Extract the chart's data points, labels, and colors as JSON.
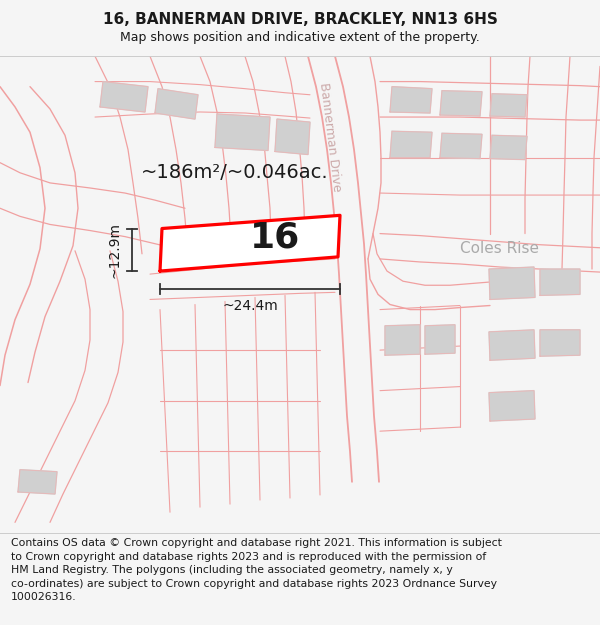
{
  "title": "16, BANNERMAN DRIVE, BRACKLEY, NN13 6HS",
  "subtitle": "Map shows position and indicative extent of the property.",
  "footer": "Contains OS data © Crown copyright and database right 2021. This information is subject\nto Crown copyright and database rights 2023 and is reproduced with the permission of\nHM Land Registry. The polygons (including the associated geometry, namely x, y\nco-ordinates) are subject to Crown copyright and database rights 2023 Ordnance Survey\n100026316.",
  "area_text": "~186m²/~0.046ac.",
  "plot_number": "16",
  "width_label": "~24.4m",
  "height_label": "~12.9m",
  "road_label": "Bannerman Drive",
  "coles_rise_label": "Coles Rise",
  "bg_color": "#f5f5f5",
  "map_bg": "#ffffff",
  "plot_color": "#ff0000",
  "road_color": "#f0a0a0",
  "road_fill": "#f8f0f0",
  "building_color": "#d0d0d0",
  "building_outline": "#e8b8b8",
  "text_color": "#1a1a1a",
  "measure_color": "#333333",
  "road_label_color": "#ccaaaa",
  "coles_rise_color": "#aaaaaa",
  "footer_fontsize": 7.8,
  "title_fontsize": 11,
  "subtitle_fontsize": 9,
  "area_fontsize": 14,
  "plot_num_fontsize": 26,
  "measure_fontsize": 10,
  "road_label_fontsize": 9,
  "coles_rise_fontsize": 11
}
